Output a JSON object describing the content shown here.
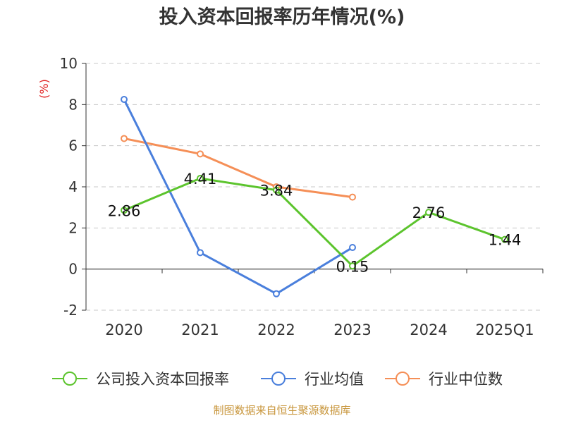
{
  "chart_data": {
    "type": "line",
    "title": "投入资本回报率历年情况(%)",
    "ylabel": "(%)",
    "categories": [
      "2020",
      "2021",
      "2022",
      "2023",
      "2024",
      "2025Q1"
    ],
    "ylim": [
      -2,
      10
    ],
    "yticks": [
      -2,
      0,
      2,
      4,
      6,
      8,
      10
    ],
    "grid": true,
    "legend_position": "bottom",
    "series": [
      {
        "name": "公司投入资本回报率",
        "color": "#5cc42d",
        "values": [
          2.86,
          4.41,
          3.84,
          0.15,
          2.76,
          1.44
        ],
        "labels": [
          "2.86",
          "4.41",
          "3.84",
          "0.15",
          "2.76",
          "1.44"
        ]
      },
      {
        "name": "行业均值",
        "color": "#4a7fdc",
        "values": [
          8.25,
          0.8,
          -1.2,
          1.05,
          null,
          null
        ]
      },
      {
        "name": "行业中位数",
        "color": "#f58f57",
        "values": [
          6.35,
          5.6,
          4.0,
          3.5,
          null,
          null
        ]
      }
    ],
    "source": "制图数据来自恒生聚源数据库"
  }
}
